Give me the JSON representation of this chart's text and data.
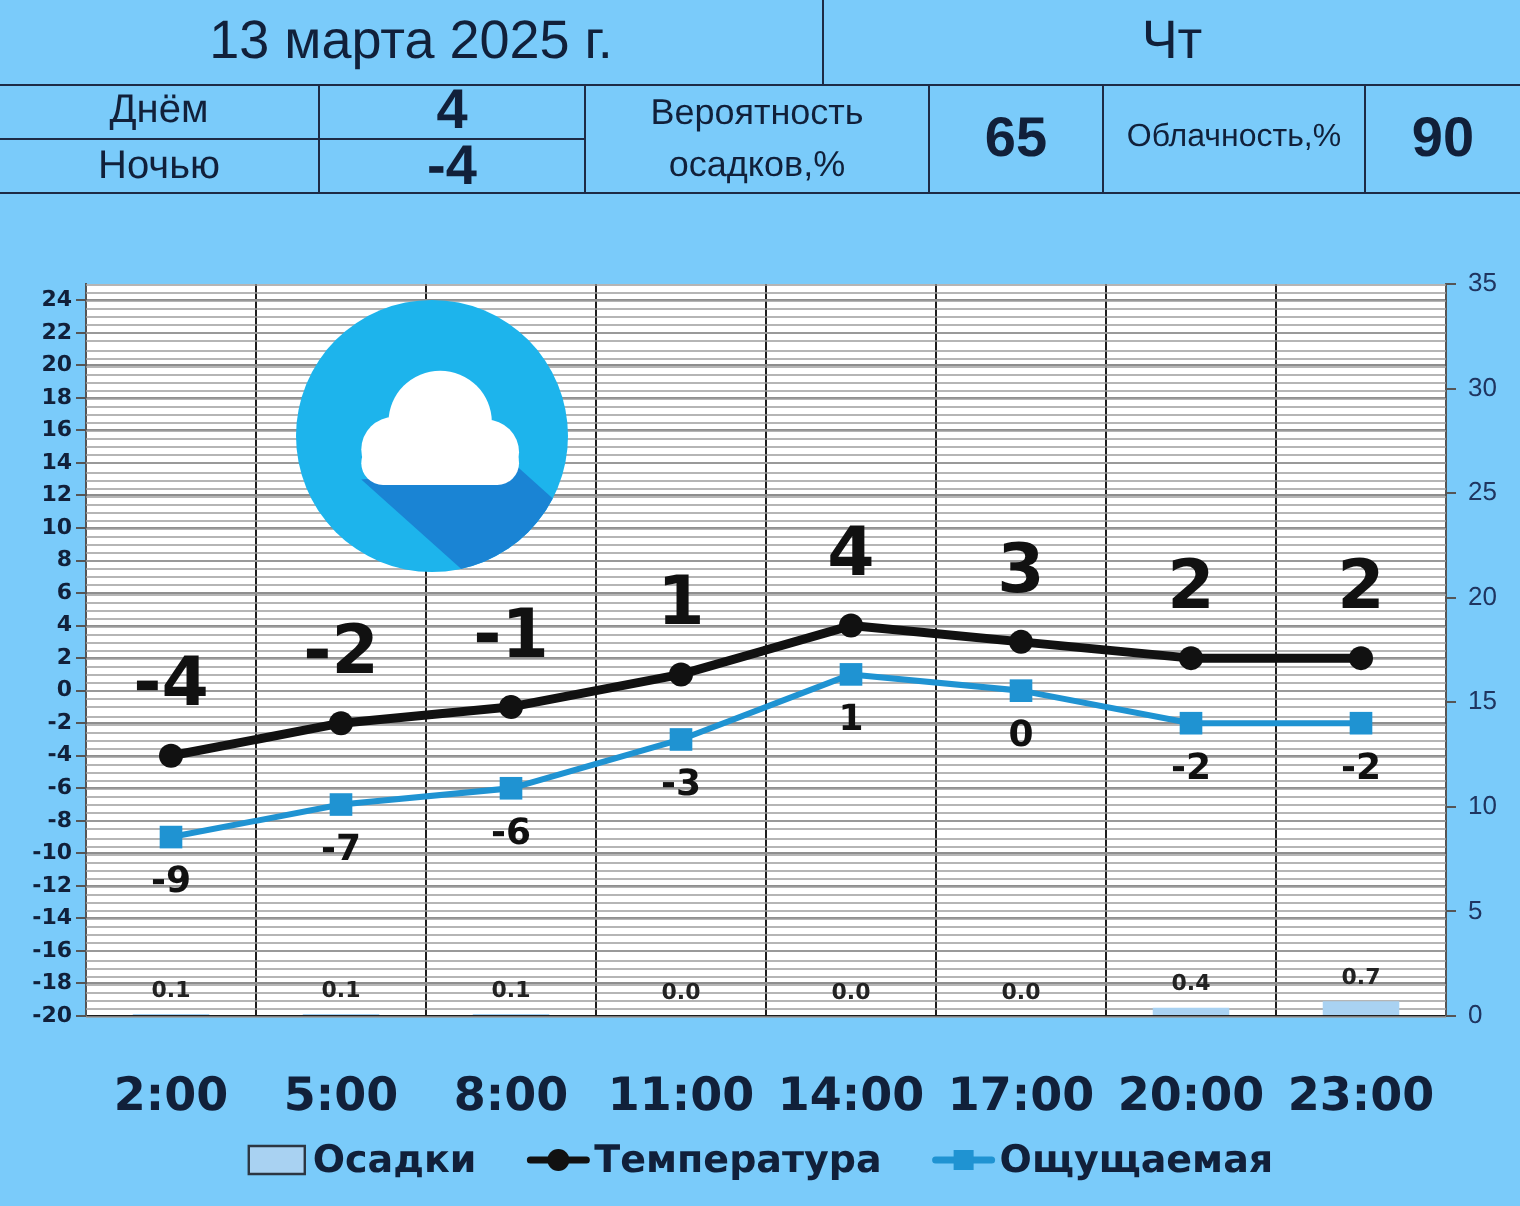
{
  "chart_data": {
    "type": "line",
    "title": "13 марта 2025 г.",
    "subtitle": "Чт",
    "annotations": [
      "Днём",
      "4",
      "Ночью",
      "-4",
      "Вероятность осадков,%",
      "65",
      "Облачность,%",
      "90"
    ],
    "categories": [
      "2:00",
      "5:00",
      "8:00",
      "11:00",
      "14:00",
      "17:00",
      "20:00",
      "23:00"
    ],
    "series": [
      {
        "name": "Осадки",
        "type": "bar",
        "axis": "y2",
        "color": "#a9d2f2",
        "values": [
          0.1,
          0.1,
          0.1,
          0,
          0,
          0,
          0.4,
          0.7
        ],
        "value_labels": [
          "0.1",
          "0.1",
          "0.1",
          "0.0",
          "0.0",
          "0.0",
          "0.4",
          "0.7"
        ]
      },
      {
        "name": "Температура",
        "marker": "circle",
        "color": "#111111",
        "values": [
          -4,
          -2,
          -1,
          1,
          4,
          3,
          2,
          2
        ],
        "value_labels": [
          "-4",
          "-2",
          "-1",
          "1",
          "4",
          "3",
          "2",
          "2"
        ]
      },
      {
        "name": "Ощущаемая",
        "marker": "square",
        "color": "#1f93d2",
        "values": [
          -9,
          -7,
          -6,
          -3,
          1,
          0,
          -2,
          -2
        ],
        "value_labels": [
          "-9",
          "-7",
          "-6",
          "-3",
          "1",
          "0",
          "-2",
          "-2"
        ]
      }
    ],
    "ylim": [
      -20,
      25
    ],
    "yticks": [
      -20,
      -18,
      -16,
      -14,
      -12,
      -10,
      -8,
      -6,
      -4,
      -2,
      0,
      2,
      4,
      6,
      8,
      10,
      12,
      14,
      16,
      18,
      20,
      22,
      24
    ],
    "y2lim": [
      0,
      35
    ],
    "y2ticks": [
      0,
      5,
      10,
      15,
      20,
      25,
      30,
      35
    ],
    "grid": true,
    "legend": "bottom"
  }
}
